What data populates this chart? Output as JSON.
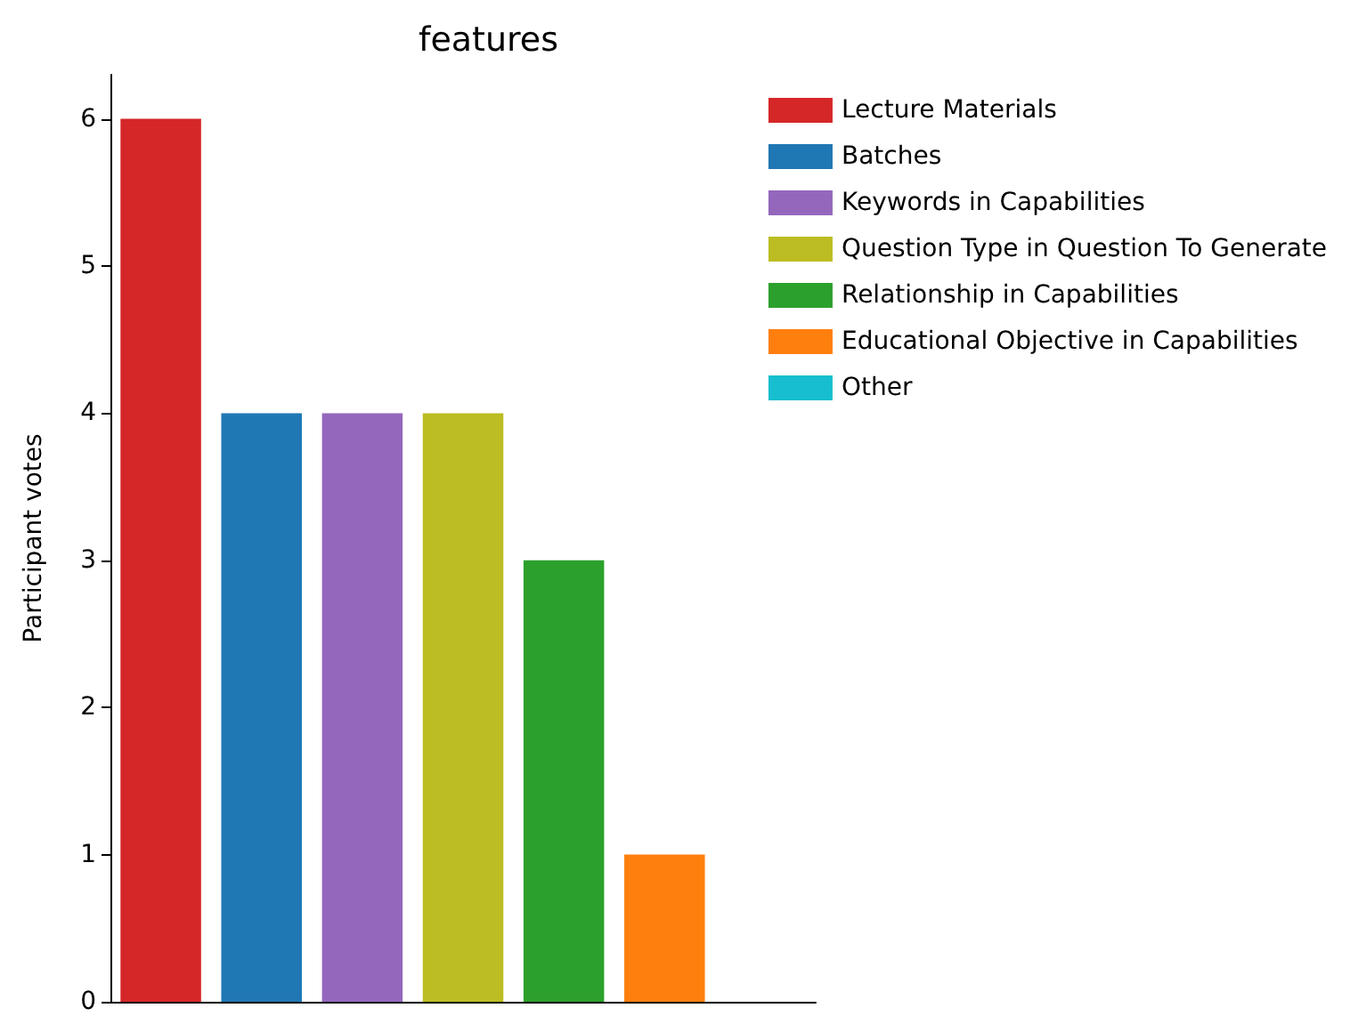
{
  "chart_data": {
    "type": "bar",
    "title": "features",
    "ylabel": "Participant votes",
    "categories": [
      null,
      null,
      null,
      null,
      null,
      null,
      null
    ],
    "series": [
      {
        "name": "Lecture Materials",
        "color": "#d62728",
        "values": [
          6,
          null,
          null,
          null,
          null,
          null,
          null
        ]
      },
      {
        "name": "Batches",
        "color": "#1f77b4",
        "values": [
          null,
          4,
          null,
          null,
          null,
          null,
          null
        ]
      },
      {
        "name": "Keywords in Capabilities",
        "color": "#9467bd",
        "values": [
          null,
          null,
          4,
          null,
          null,
          null,
          null
        ]
      },
      {
        "name": "Question Type in Question To Generate",
        "color": "#bcbd22",
        "values": [
          null,
          null,
          null,
          4,
          null,
          null,
          null
        ]
      },
      {
        "name": "Relationship in Capabilities",
        "color": "#2ca02c",
        "values": [
          null,
          null,
          null,
          null,
          3,
          null,
          null
        ]
      },
      {
        "name": "Educational Objective in Capabilities",
        "color": "#ff7f0e",
        "values": [
          null,
          null,
          null,
          null,
          null,
          1,
          null
        ]
      },
      {
        "name": "Other",
        "color": "#17becf",
        "values": [
          null,
          null,
          null,
          null,
          null,
          null,
          0
        ]
      }
    ],
    "ylim": [
      0,
      6.3
    ],
    "yticks": [
      0,
      1,
      2,
      3,
      4,
      5,
      6
    ],
    "tick_labels": "y",
    "legend": "right",
    "grid": false
  }
}
